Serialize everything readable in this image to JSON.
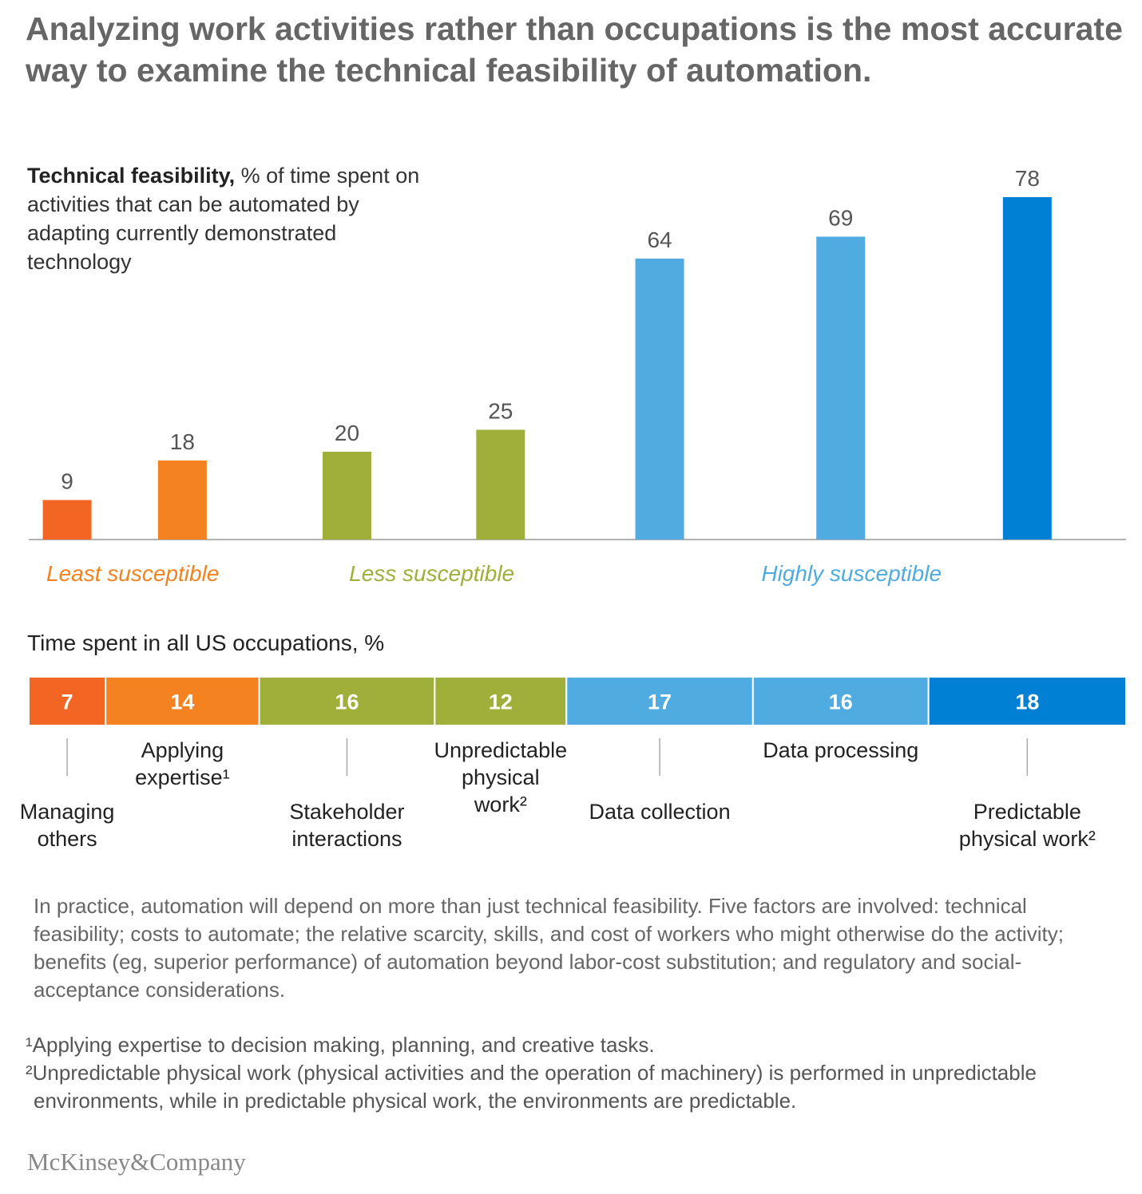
{
  "title": "Analyzing work activities rather than occupations is the most accurate way to examine the technical feasibility of automation.",
  "chart_data": [
    {
      "type": "bar",
      "title": "Technical feasibility,",
      "subtitle": "% of time spent on activities that can be automated by adapting currently demonstrated technology",
      "series": [
        {
          "name": "Least susceptible",
          "color": "#f58220",
          "colors": [
            "#f26522",
            "#f58220"
          ],
          "values": [
            9,
            18
          ]
        },
        {
          "name": "Less susceptible",
          "color": "#a0ae3a",
          "colors": [
            "#a0ae3a",
            "#a0ae3a"
          ],
          "values": [
            20,
            25
          ]
        },
        {
          "name": "Highly susceptible",
          "color": "#4fabe0",
          "colors": [
            "#4fabe0",
            "#4fabe0",
            "#0080d5"
          ],
          "values": [
            64,
            69,
            78
          ]
        }
      ]
    },
    {
      "type": "stacked-bar",
      "title": "Time spent in all US occupations, %",
      "categories": [
        "Managing\nothers",
        "Applying\nexpertise¹",
        "Stakeholder\ninteractions",
        "Unpredictable\nphysical\nwork²",
        "Data collection",
        "Data processing",
        "Predictable\nphysical work²"
      ],
      "values": [
        7,
        14,
        16,
        12,
        17,
        16,
        18
      ],
      "colors": [
        "#f26522",
        "#f58220",
        "#a0ae3a",
        "#a0ae3a",
        "#4fabe0",
        "#4fabe0",
        "#0080d5"
      ]
    }
  ],
  "note": "In practice, automation will depend on more than just technical feasibility. Five factors are involved: technical feasibility; costs to automate; the relative scarcity, skills, and cost of workers who might otherwise do the activity; benefits (eg, superior performance) of automation beyond labor-cost substitution; and regulatory and social-acceptance considerations.",
  "footnotes": [
    "¹Applying expertise to decision making, planning, and creative tasks.",
    "²Unpredictable physical work (physical activities and the operation of machinery) is performed in unpredictable environments, while in predictable physical work, the environments are predictable."
  ],
  "logo": "McKinsey&Company"
}
